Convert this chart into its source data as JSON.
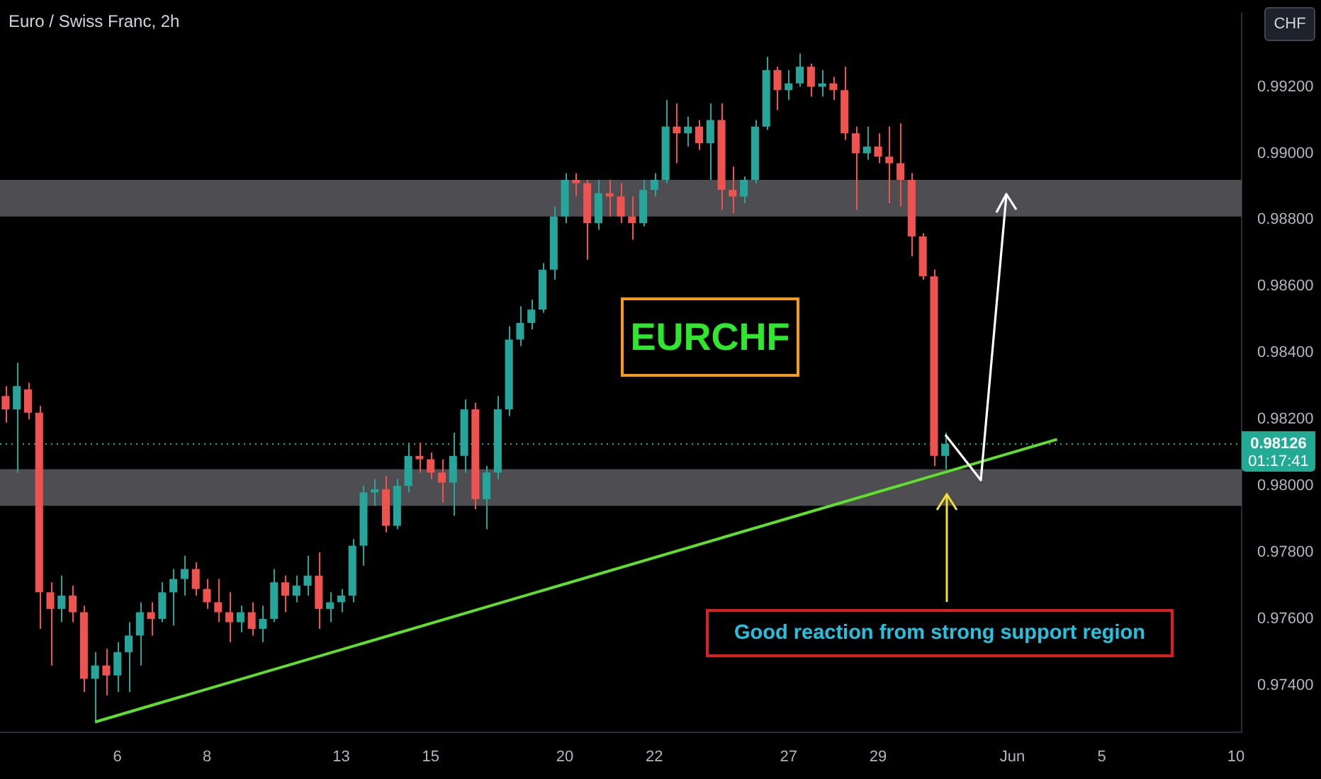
{
  "chart_data": {
    "type": "candlestick",
    "title": "Euro / Swiss Franc, 2h",
    "categories": [
      null,
      null,
      null,
      null,
      null,
      null,
      null,
      null,
      null,
      null,
      "6",
      null,
      null,
      null,
      null,
      null,
      null,
      null,
      "8",
      null,
      null,
      null,
      null,
      null,
      null,
      null,
      null,
      null,
      null,
      null,
      "13",
      null,
      null,
      null,
      null,
      null,
      null,
      null,
      "15",
      null,
      null,
      null,
      null,
      null,
      null,
      null,
      null,
      null,
      null,
      null,
      "20",
      null,
      null,
      null,
      null,
      null,
      null,
      null,
      "22",
      null,
      null,
      null,
      null,
      null,
      null,
      null,
      null,
      null,
      null,
      null,
      "27",
      null,
      null,
      null,
      null,
      null,
      null,
      null,
      "29",
      null,
      null,
      null,
      null,
      null,
      null,
      null,
      null,
      null,
      null,
      null,
      "Jun",
      null,
      null,
      null,
      null,
      null,
      null,
      null,
      "5",
      null,
      null,
      null,
      null,
      null,
      null,
      null,
      null,
      null,
      null,
      null,
      "10"
    ],
    "ohlc": [
      [
        0.9827,
        0.983,
        0.9819,
        0.9823
      ],
      [
        0.9823,
        0.9837,
        0.9804,
        0.983
      ],
      [
        0.9829,
        0.9831,
        0.982,
        0.9822
      ],
      [
        0.9822,
        0.9824,
        0.9757,
        0.9768
      ],
      [
        0.9768,
        0.9771,
        0.9746,
        0.9763
      ],
      [
        0.9763,
        0.9773,
        0.9759,
        0.9767
      ],
      [
        0.9767,
        0.977,
        0.9759,
        0.9762
      ],
      [
        0.9762,
        0.9764,
        0.9738,
        0.9742
      ],
      [
        0.9742,
        0.975,
        0.9729,
        0.9746
      ],
      [
        0.9746,
        0.9751,
        0.9737,
        0.9743
      ],
      [
        0.9743,
        0.9753,
        0.9738,
        0.975
      ],
      [
        0.975,
        0.9759,
        0.9738,
        0.9755
      ],
      [
        0.9755,
        0.9765,
        0.9746,
        0.9762
      ],
      [
        0.9762,
        0.9765,
        0.9755,
        0.976
      ],
      [
        0.976,
        0.9771,
        0.9759,
        0.9768
      ],
      [
        0.9768,
        0.9775,
        0.9758,
        0.9772
      ],
      [
        0.9772,
        0.9779,
        0.9767,
        0.9775
      ],
      [
        0.9775,
        0.9777,
        0.9767,
        0.9769
      ],
      [
        0.9769,
        0.9772,
        0.9763,
        0.9765
      ],
      [
        0.9765,
        0.9772,
        0.9759,
        0.9762
      ],
      [
        0.9762,
        0.9768,
        0.9753,
        0.9759
      ],
      [
        0.9759,
        0.9764,
        0.9756,
        0.9762
      ],
      [
        0.9762,
        0.9765,
        0.9755,
        0.9757
      ],
      [
        0.9757,
        0.9764,
        0.9753,
        0.976
      ],
      [
        0.976,
        0.9775,
        0.9759,
        0.9771
      ],
      [
        0.9771,
        0.9773,
        0.9762,
        0.9767
      ],
      [
        0.9767,
        0.9773,
        0.9765,
        0.977
      ],
      [
        0.977,
        0.9779,
        0.9767,
        0.9773
      ],
      [
        0.9773,
        0.978,
        0.9757,
        0.9763
      ],
      [
        0.9763,
        0.9768,
        0.9759,
        0.9765
      ],
      [
        0.9765,
        0.9769,
        0.9762,
        0.9767
      ],
      [
        0.9767,
        0.9784,
        0.9765,
        0.9782
      ],
      [
        0.9782,
        0.98,
        0.9776,
        0.9798
      ],
      [
        0.9798,
        0.9802,
        0.9794,
        0.9799
      ],
      [
        0.9799,
        0.9803,
        0.9786,
        0.9788
      ],
      [
        0.9788,
        0.9802,
        0.9787,
        0.98
      ],
      [
        0.98,
        0.9813,
        0.9798,
        0.9809
      ],
      [
        0.9809,
        0.9813,
        0.9804,
        0.9808
      ],
      [
        0.9808,
        0.981,
        0.9802,
        0.9804
      ],
      [
        0.9804,
        0.9808,
        0.9795,
        0.9801
      ],
      [
        0.9801,
        0.9816,
        0.9791,
        0.9809
      ],
      [
        0.9809,
        0.9826,
        0.9804,
        0.9823
      ],
      [
        0.9823,
        0.9825,
        0.9793,
        0.9796
      ],
      [
        0.9796,
        0.9806,
        0.9787,
        0.9804
      ],
      [
        0.9804,
        0.9827,
        0.9802,
        0.9823
      ],
      [
        0.9823,
        0.9848,
        0.9821,
        0.9844
      ],
      [
        0.9844,
        0.9854,
        0.9842,
        0.9849
      ],
      [
        0.9849,
        0.9856,
        0.9847,
        0.9853
      ],
      [
        0.9853,
        0.9867,
        0.9852,
        0.9865
      ],
      [
        0.9865,
        0.9884,
        0.9862,
        0.9881
      ],
      [
        0.9881,
        0.9894,
        0.9879,
        0.9892
      ],
      [
        0.9892,
        0.9894,
        0.9887,
        0.9891
      ],
      [
        0.9891,
        0.9892,
        0.9868,
        0.9879
      ],
      [
        0.9879,
        0.9892,
        0.9877,
        0.9888
      ],
      [
        0.9888,
        0.9892,
        0.9881,
        0.9887
      ],
      [
        0.9887,
        0.9891,
        0.9879,
        0.9881
      ],
      [
        0.9881,
        0.9887,
        0.9874,
        0.9879
      ],
      [
        0.9879,
        0.9892,
        0.9878,
        0.9889
      ],
      [
        0.9889,
        0.9894,
        0.9887,
        0.9892
      ],
      [
        0.9892,
        0.9916,
        0.9891,
        0.9908
      ],
      [
        0.9908,
        0.9915,
        0.9897,
        0.9906
      ],
      [
        0.9906,
        0.9911,
        0.9902,
        0.9908
      ],
      [
        0.9908,
        0.991,
        0.9901,
        0.9903
      ],
      [
        0.9903,
        0.9915,
        0.9892,
        0.991
      ],
      [
        0.991,
        0.9915,
        0.9883,
        0.9889
      ],
      [
        0.9889,
        0.9896,
        0.9882,
        0.9887
      ],
      [
        0.9887,
        0.9893,
        0.9885,
        0.9892
      ],
      [
        0.9892,
        0.991,
        0.9891,
        0.9908
      ],
      [
        0.9908,
        0.9929,
        0.9907,
        0.9925
      ],
      [
        0.9925,
        0.9926,
        0.9913,
        0.9919
      ],
      [
        0.9919,
        0.9925,
        0.9916,
        0.9921
      ],
      [
        0.9921,
        0.993,
        0.992,
        0.9926
      ],
      [
        0.9926,
        0.9927,
        0.9917,
        0.992
      ],
      [
        0.992,
        0.9925,
        0.9917,
        0.9921
      ],
      [
        0.9921,
        0.9923,
        0.9916,
        0.9919
      ],
      [
        0.9919,
        0.9926,
        0.9904,
        0.9906
      ],
      [
        0.9906,
        0.9908,
        0.9883,
        0.99
      ],
      [
        0.99,
        0.9908,
        0.9898,
        0.9902
      ],
      [
        0.9902,
        0.9906,
        0.9897,
        0.9899
      ],
      [
        0.9899,
        0.9908,
        0.9885,
        0.9897
      ],
      [
        0.9897,
        0.9909,
        0.9884,
        0.9892
      ],
      [
        0.9892,
        0.9894,
        0.9869,
        0.9875
      ],
      [
        0.9875,
        0.9876,
        0.9862,
        0.9863
      ],
      [
        0.9863,
        0.9865,
        0.9806,
        0.9809
      ],
      [
        0.9809,
        0.9816,
        0.9805,
        0.98126
      ],
      null,
      null,
      null,
      null,
      null,
      null,
      null,
      null,
      null,
      null,
      null,
      null,
      null,
      null,
      null,
      null,
      null,
      null,
      null,
      null,
      null,
      null,
      null,
      null,
      null,
      null
    ],
    "series": [
      {
        "type": "line",
        "color": "#5fe02a",
        "values": [
          null,
          null,
          null,
          null,
          null,
          null,
          null,
          null,
          0.9729,
          null,
          null,
          null,
          null,
          null,
          null,
          null,
          null,
          null,
          null,
          null,
          null,
          null,
          null,
          null,
          null,
          null,
          null,
          null,
          null,
          null,
          null,
          null,
          null,
          null,
          null,
          null,
          null,
          null,
          null,
          null,
          null,
          null,
          null,
          null,
          null,
          null,
          null,
          null,
          null,
          null,
          null,
          null,
          null,
          null,
          null,
          null,
          null,
          null,
          null,
          null,
          null,
          null,
          null,
          null,
          null,
          null,
          null,
          null,
          null,
          null,
          null,
          null,
          null,
          null,
          null,
          null,
          null,
          null,
          null,
          null,
          null,
          null,
          null,
          null,
          null,
          null,
          null,
          null,
          null,
          null,
          null,
          null,
          null,
          null,
          0.9814,
          null,
          null,
          null,
          null,
          null,
          null,
          null,
          null,
          null,
          null,
          null,
          null,
          null,
          null,
          null,
          null
        ]
      }
    ],
    "ylim": [
      0.9726,
      0.9942
    ],
    "yticks": [
      {
        "value": 0.974,
        "label": "0.97400"
      },
      {
        "value": 0.976,
        "label": "0.97600"
      },
      {
        "value": 0.978,
        "label": "0.97800"
      },
      {
        "value": 0.98,
        "label": "0.98000"
      },
      {
        "value": 0.982,
        "label": "0.98200"
      },
      {
        "value": 0.984,
        "label": "0.98400"
      },
      {
        "value": 0.986,
        "label": "0.98600"
      },
      {
        "value": 0.988,
        "label": "0.98800"
      },
      {
        "value": 0.99,
        "label": "0.99000"
      },
      {
        "value": 0.992,
        "label": "0.99200"
      }
    ],
    "bands": [
      {
        "axis": "y",
        "from": 0.9881,
        "to": 0.9892,
        "color": "#5a5b60"
      },
      {
        "axis": "y",
        "from": 0.9794,
        "to": 0.9805,
        "color": "#5a5b60"
      }
    ],
    "ref_lines": [
      {
        "axis": "y",
        "value": 0.98126,
        "label": "0.98126",
        "color": "#22ab94",
        "line_style": "dotted"
      }
    ],
    "annotations": [
      "EURCHF",
      "Good reaction from strong support region",
      "01:17:41",
      "CHF"
    ],
    "grid": false,
    "legend": false,
    "marker": "none"
  }
}
